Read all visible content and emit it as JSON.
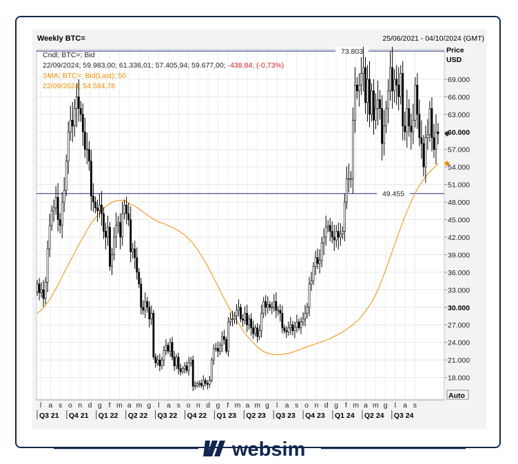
{
  "chart_data": {
    "type": "candlestick",
    "title": "Weekly BTC=",
    "date_range": "25/06/2021 - 04/10/2024 (GMT)",
    "ylabel": "Price",
    "yunit": "USD",
    "ylim": [
      15000,
      75000
    ],
    "y_ticks": [
      "18.000",
      "21.000",
      "24.000",
      "27.000",
      "30.000",
      "33.000",
      "36.000",
      "39.000",
      "42.000",
      "45.000",
      "48.000",
      "51.000",
      "54.000",
      "57.000",
      "60.000",
      "63.000",
      "66.000",
      "69.000"
    ],
    "y_ticks_bold": [
      "30.000",
      "60.000"
    ],
    "month_ticks": [
      "l",
      "a",
      "s",
      "o",
      "n",
      "d",
      "g",
      "f",
      "m",
      "a",
      "m",
      "g",
      "l",
      "a",
      "s",
      "o",
      "n",
      "d",
      "g",
      "f",
      "m",
      "a",
      "m",
      "g",
      "l",
      "a",
      "s",
      "o",
      "n",
      "d",
      "g",
      "f",
      "m",
      "a",
      "m",
      "g",
      "l",
      "a",
      "s"
    ],
    "quarter_labels": [
      "Q3 21",
      "Q4 21",
      "Q1 22",
      "Q2 22",
      "Q3 22",
      "Q4 22",
      "Q1 23",
      "Q2 23",
      "Q3 23",
      "Q4 23",
      "Q1 24",
      "Q2 24",
      "Q3 24"
    ],
    "legend": {
      "line1": "Cndl; BTC=; Bid",
      "line2_values": "22/09/2024; 59.983,00; 61.336,01; 57.405,94; 59.677,00;",
      "line2_change": "-438,84; (-0,73%)",
      "line3": "SMA; BTC=; Bid(Last);  50",
      "line4": "22/09/2024; 54.584,78"
    },
    "hlines": [
      {
        "label": "73.803",
        "value": 73803
      },
      {
        "label": "49.455",
        "value": 49455
      }
    ],
    "last_price_label": "60.000",
    "last_price": 59677,
    "sma_last": 54585,
    "auto_label": "Auto",
    "close": [
      34000,
      32500,
      33000,
      31500,
      34300,
      40000,
      44000,
      46500,
      47000,
      48800,
      45000,
      44000,
      48000,
      50000,
      55000,
      60000,
      62000,
      61000,
      64000,
      66000,
      64000,
      63000,
      60000,
      57000,
      57000,
      55000,
      49000,
      48000,
      47000,
      46500,
      47500,
      46000,
      43000,
      42000,
      43700,
      37000,
      39000,
      42000,
      44000,
      44500,
      42000,
      46000,
      47500,
      46000,
      45000,
      39500,
      40000,
      38500,
      36000,
      34000,
      30000,
      29500,
      31000,
      30000,
      28000,
      29000,
      21500,
      20500,
      21000,
      20000,
      21000,
      22600,
      23500,
      22500,
      24000,
      21500,
      20000,
      21500,
      19500,
      19000,
      19500,
      20000,
      19200,
      20500,
      21000,
      16500,
      16600,
      17000,
      17000,
      16600,
      17500,
      17000,
      16800,
      17500,
      21000,
      23000,
      23000,
      22500,
      23500,
      25000,
      24500,
      22500,
      27500,
      28000,
      28000,
      28500,
      29500,
      30000,
      28000,
      27800,
      29000,
      27000,
      28000,
      26500,
      25500,
      26500,
      25000,
      26000,
      29000,
      31000,
      30000,
      30500,
      30000,
      30000,
      31000,
      29500,
      29500,
      29000,
      26500,
      26000,
      25800,
      26500,
      27000,
      26000,
      26600,
      27500,
      26500,
      27500,
      28000,
      29000,
      30000,
      34000,
      34500,
      37000,
      38500,
      37500,
      38000,
      41000,
      42000,
      43700,
      44000,
      43000,
      42000,
      41500,
      43000,
      42000,
      42500,
      43000,
      48000,
      52000,
      52000,
      52000,
      62000,
      68000,
      67000,
      68000,
      70000,
      71000,
      65000,
      69000,
      63000,
      67000,
      62000,
      64000,
      65500,
      64000,
      58000,
      61000,
      64000,
      67000,
      71000,
      67000,
      69000,
      68000,
      66000,
      70000,
      61000,
      60000,
      64000,
      61000,
      60000,
      62000,
      68000,
      63000,
      59000,
      58000,
      54000,
      59000,
      59500,
      64000,
      59000,
      57000,
      60000,
      59680
    ],
    "sma50": [
      29000,
      29400,
      30000,
      30700,
      31500,
      32500,
      33500,
      34600,
      35700,
      36800,
      37900,
      38900,
      40000,
      41000,
      42000,
      43000,
      44000,
      44800,
      45500,
      46200,
      46800,
      47300,
      47700,
      48000,
      48200,
      48300,
      48300,
      48100,
      47800,
      47500,
      47200,
      46800,
      46400,
      46000,
      45600,
      45200,
      44900,
      44600,
      44400,
      44200,
      43900,
      43700,
      43400,
      43100,
      42700,
      42300,
      41800,
      41200,
      40500,
      39700,
      38800,
      37900,
      36900,
      35800,
      34700,
      33600,
      32500,
      31400,
      30300,
      29300,
      28400,
      27500,
      26600,
      25800,
      25000,
      24400,
      23800,
      23200,
      22800,
      22400,
      22200,
      22000,
      21900,
      21900,
      21900,
      22000,
      22100,
      22200,
      22400,
      22600,
      22800,
      23000,
      23200,
      23400,
      23600,
      23800,
      24000,
      24200,
      24400,
      24600,
      24900,
      25200,
      25500,
      25800,
      26200,
      26600,
      27000,
      27500,
      28000,
      28700,
      29400,
      30200,
      31100,
      32200,
      33400,
      34800,
      36300,
      37900,
      39500,
      41100,
      42700,
      44200,
      45700,
      47000,
      48300,
      49500,
      50500,
      51400,
      52200,
      52900,
      53500,
      54000,
      54585
    ],
    "footer_text": "websim"
  }
}
